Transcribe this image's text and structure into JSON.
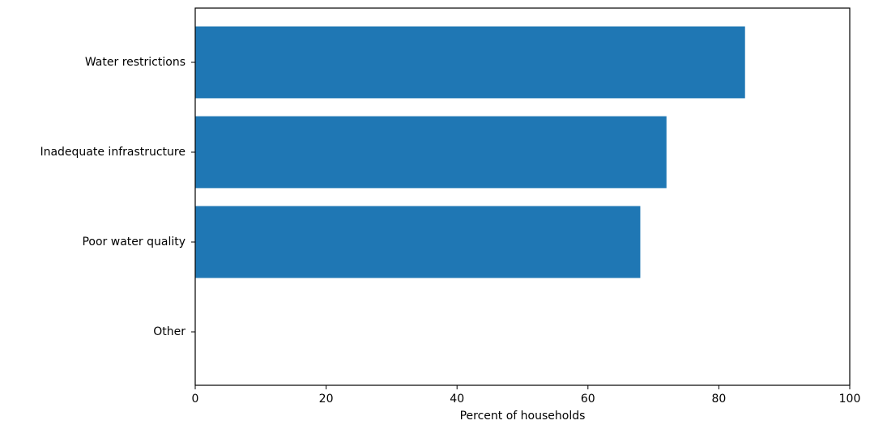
{
  "chart_data": {
    "type": "bar",
    "orientation": "horizontal",
    "categories": [
      "Water restrictions",
      "Inadequate infrastructure",
      "Poor water quality",
      "Other"
    ],
    "values": [
      84,
      72,
      68,
      0
    ],
    "color": "#1f77b4",
    "xlabel": "Percent of households",
    "xlim": [
      0,
      100
    ],
    "xticks": [
      0,
      20,
      40,
      60,
      80,
      100
    ]
  }
}
